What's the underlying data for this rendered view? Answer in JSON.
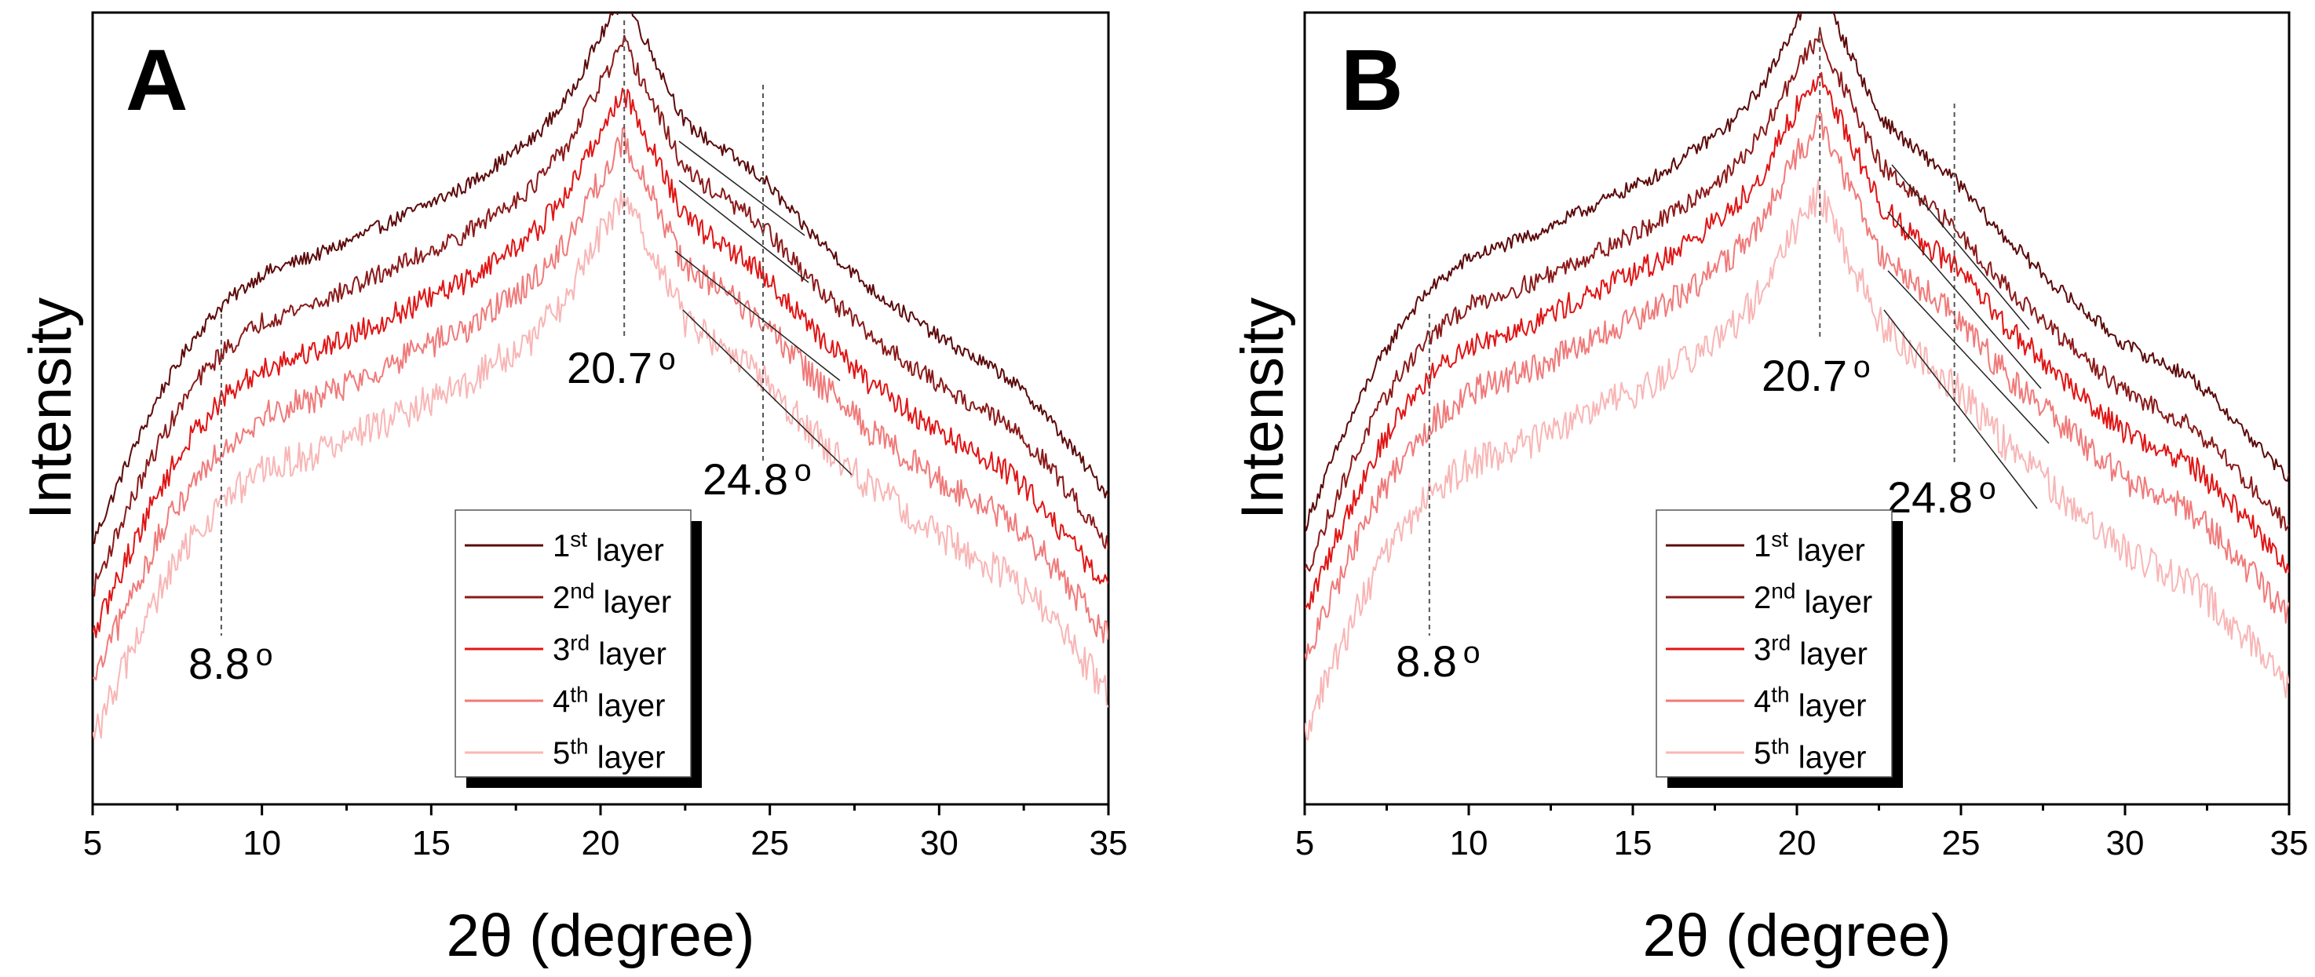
{
  "chart_data": [
    {
      "type": "line",
      "panel_label": "A",
      "xlabel": "2θ (degree)",
      "ylabel": "Intensity",
      "xlim": [
        5,
        35
      ],
      "xticks": [
        5,
        10,
        15,
        20,
        25,
        30,
        35
      ],
      "ylim": [
        0,
        100
      ],
      "peaks": [
        {
          "label": "8.8 o",
          "main": "8.8",
          "sup": "o",
          "x": 8.8
        },
        {
          "label": "20.7 o",
          "main": "20.7",
          "sup": "o",
          "x": 20.7
        },
        {
          "label": "24.8 o",
          "main": "24.8",
          "sup": "o",
          "x": 24.8
        }
      ],
      "series": [
        {
          "name": "1st layer",
          "main": "1",
          "sup": "st",
          "rest": " layer",
          "color": "#5c0a0a",
          "offset": 23
        },
        {
          "name": "2nd layer",
          "main": "2",
          "sup": "nd",
          "rest": " layer",
          "color": "#8b1a1a",
          "offset": 17
        },
        {
          "name": "3rd layer",
          "main": "3",
          "sup": "rd",
          "rest": " layer",
          "color": "#e01515",
          "offset": 11
        },
        {
          "name": "4th layer",
          "main": "4",
          "sup": "th",
          "rest": " layer",
          "color": "#f07a7a",
          "offset": 5
        },
        {
          "name": "5th layer",
          "main": "5",
          "sup": "th",
          "rest": " layer",
          "color": "#f8b6b6",
          "offset": -2
        }
      ],
      "profile": {
        "x": [
          5,
          6,
          7,
          8,
          8.8,
          10,
          12,
          14,
          16,
          18,
          19,
          20,
          20.7,
          21.5,
          22.5,
          23.5,
          24.8,
          26,
          28,
          30,
          32,
          33,
          35
        ],
        "y": [
          10,
          20,
          29,
          36,
          40,
          44,
          47,
          51,
          55,
          61,
          66,
          74,
          79,
          72,
          63,
          60,
          56,
          50,
          42,
          36,
          31,
          27,
          16
        ]
      }
    },
    {
      "type": "line",
      "panel_label": "B",
      "xlabel": "2θ (degree)",
      "ylabel": "Intensity",
      "xlim": [
        5,
        35
      ],
      "xticks": [
        5,
        10,
        15,
        20,
        25,
        30,
        35
      ],
      "ylim": [
        0,
        100
      ],
      "peaks": [
        {
          "label": "8.8 o",
          "main": "8.8",
          "sup": "o",
          "x": 8.8
        },
        {
          "label": "20.7 o",
          "main": "20.7",
          "sup": "o",
          "x": 20.7
        },
        {
          "label": "24.8 o",
          "main": "24.8",
          "sup": "o",
          "x": 24.8
        }
      ],
      "series": [
        {
          "name": "1st layer",
          "main": "1",
          "sup": "st",
          "rest": " layer",
          "color": "#5c0a0a",
          "offset": 25
        },
        {
          "name": "2nd layer",
          "main": "2",
          "sup": "nd",
          "rest": " layer",
          "color": "#8b1a1a",
          "offset": 19
        },
        {
          "name": "3rd layer",
          "main": "3",
          "sup": "rd",
          "rest": " layer",
          "color": "#e01515",
          "offset": 14
        },
        {
          "name": "4th layer",
          "main": "4",
          "sup": "th",
          "rest": " layer",
          "color": "#f07a7a",
          "offset": 8
        },
        {
          "name": "5th layer",
          "main": "5",
          "sup": "th",
          "rest": " layer",
          "color": "#f8b6b6",
          "offset": -1
        }
      ],
      "profile": {
        "x": [
          5,
          6,
          7,
          8,
          8.8,
          10,
          12,
          14,
          16,
          18,
          19,
          20,
          20.7,
          21.5,
          22.5,
          23.5,
          24.8,
          26,
          28,
          30,
          32,
          33,
          35
        ],
        "y": [
          10,
          20,
          29,
          36,
          40,
          44,
          47,
          51,
          55,
          61,
          66,
          74,
          78,
          71,
          62,
          58,
          54,
          48,
          40,
          33,
          29,
          25,
          16
        ]
      }
    }
  ]
}
